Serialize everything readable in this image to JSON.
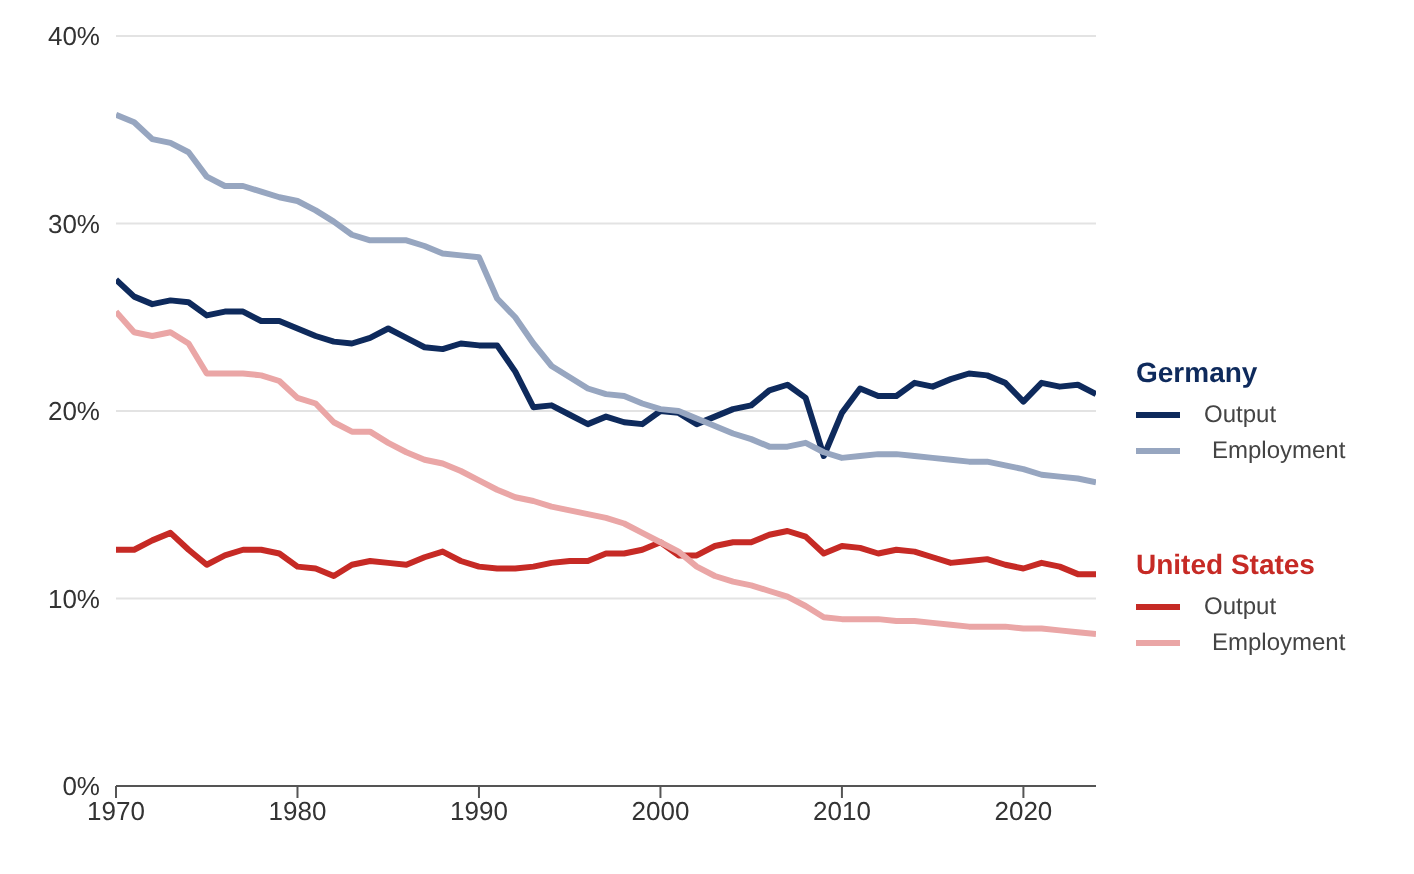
{
  "chart_data": {
    "type": "line",
    "x": [
      1970,
      1971,
      1972,
      1973,
      1974,
      1975,
      1976,
      1977,
      1978,
      1979,
      1980,
      1981,
      1982,
      1983,
      1984,
      1985,
      1986,
      1987,
      1988,
      1989,
      1990,
      1991,
      1992,
      1993,
      1994,
      1995,
      1996,
      1997,
      1998,
      1999,
      2000,
      2001,
      2002,
      2003,
      2004,
      2005,
      2006,
      2007,
      2008,
      2009,
      2010,
      2011,
      2012,
      2013,
      2014,
      2015,
      2016,
      2017,
      2018,
      2019,
      2020,
      2021,
      2022,
      2023,
      2024
    ],
    "series": [
      {
        "name": "Output",
        "color": "#0e2a5c",
        "values": [
          27.0,
          26.1,
          25.7,
          25.9,
          25.8,
          25.1,
          25.3,
          25.3,
          24.8,
          24.8,
          24.4,
          24.0,
          23.7,
          23.6,
          23.9,
          24.4,
          23.9,
          23.4,
          23.3,
          23.6,
          23.5,
          23.5,
          22.1,
          20.2,
          20.3,
          19.8,
          19.3,
          19.7,
          19.4,
          19.3,
          20.0,
          19.9,
          19.3,
          19.7,
          20.1,
          20.3,
          21.1,
          21.4,
          20.7,
          17.6,
          19.9,
          21.2,
          20.8,
          20.8,
          21.5,
          21.3,
          21.7,
          22.0,
          21.9,
          21.5,
          20.5,
          21.5,
          21.3,
          21.4,
          20.9
        ]
      },
      {
        "name": "Employment",
        "color": "#97a6c0",
        "values": [
          35.8,
          35.4,
          34.5,
          34.3,
          33.8,
          32.5,
          32.0,
          32.0,
          31.7,
          31.4,
          31.2,
          30.7,
          30.1,
          29.4,
          29.1,
          29.1,
          29.1,
          28.8,
          28.4,
          28.3,
          28.2,
          26.0,
          25.0,
          23.6,
          22.4,
          21.8,
          21.2,
          20.9,
          20.8,
          20.4,
          20.1,
          20.0,
          19.6,
          19.2,
          18.8,
          18.5,
          18.1,
          18.1,
          18.3,
          17.8,
          17.5,
          17.6,
          17.7,
          17.7,
          17.6,
          17.5,
          17.4,
          17.3,
          17.3,
          17.1,
          16.9,
          16.6,
          16.5,
          16.4,
          16.2
        ]
      },
      {
        "name": "Output",
        "color": "#c62a25",
        "values": [
          12.6,
          12.6,
          13.1,
          13.5,
          12.6,
          11.8,
          12.3,
          12.6,
          12.6,
          12.4,
          11.7,
          11.6,
          11.2,
          11.8,
          12.0,
          11.9,
          11.8,
          12.2,
          12.5,
          12.0,
          11.7,
          11.6,
          11.6,
          11.7,
          11.9,
          12.0,
          12.0,
          12.4,
          12.4,
          12.6,
          13.0,
          12.3,
          12.3,
          12.8,
          13.0,
          13.0,
          13.4,
          13.6,
          13.3,
          12.4,
          12.8,
          12.7,
          12.4,
          12.6,
          12.5,
          12.2,
          11.9,
          12.0,
          12.1,
          11.8,
          11.6,
          11.9,
          11.7,
          11.3,
          11.3
        ]
      },
      {
        "name": "Employment",
        "color": "#eaa6a6",
        "values": [
          25.3,
          24.2,
          24.0,
          24.2,
          23.6,
          22.0,
          22.0,
          22.0,
          21.9,
          21.6,
          20.7,
          20.4,
          19.4,
          18.9,
          18.9,
          18.3,
          17.8,
          17.4,
          17.2,
          16.8,
          16.3,
          15.8,
          15.4,
          15.2,
          14.9,
          14.7,
          14.5,
          14.3,
          14.0,
          13.5,
          13.0,
          12.5,
          11.7,
          11.2,
          10.9,
          10.7,
          10.4,
          10.1,
          9.6,
          9.0,
          8.9,
          8.9,
          8.9,
          8.8,
          8.8,
          8.7,
          8.6,
          8.5,
          8.5,
          8.5,
          8.4,
          8.4,
          8.3,
          8.2,
          8.1
        ]
      }
    ],
    "annotations": [
      "Germany",
      "United States"
    ],
    "xlim": [
      1970,
      2024
    ],
    "xticks": [
      1970,
      1980,
      1990,
      2000,
      2010,
      2020
    ],
    "ylim": [
      0,
      40
    ],
    "yticks": [
      {
        "value": 0,
        "label": "0%"
      },
      {
        "value": 10,
        "label": "10%"
      },
      {
        "value": 20,
        "label": "20%"
      },
      {
        "value": 30,
        "label": "30%"
      },
      {
        "value": 40,
        "label": "40%"
      }
    ],
    "grid": "y",
    "legend": "right",
    "marker": "none",
    "line_style": "solid"
  }
}
